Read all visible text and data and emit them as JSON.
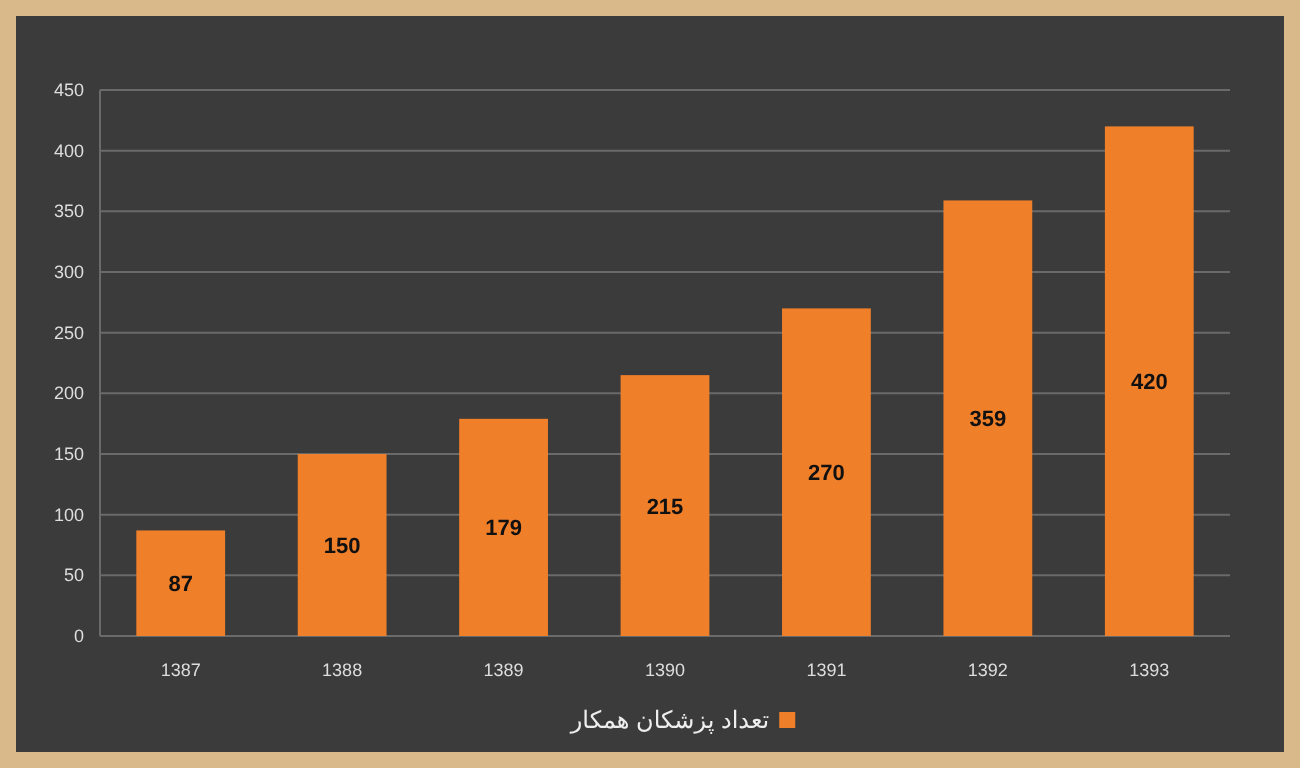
{
  "chart_data": {
    "type": "bar",
    "categories": [
      "1387",
      "1388",
      "1389",
      "1390",
      "1391",
      "1392",
      "1393"
    ],
    "series": [
      {
        "name": "تعداد پزشکان همکار",
        "color": "#f07f2a",
        "values": [
          87,
          150,
          179,
          215,
          270,
          359,
          420
        ]
      }
    ],
    "ylim": [
      0,
      450
    ],
    "yticks": [
      0,
      50,
      100,
      150,
      200,
      250,
      300,
      350,
      400,
      450
    ],
    "grid": "y",
    "legend": "bottom",
    "data_labels": true
  }
}
